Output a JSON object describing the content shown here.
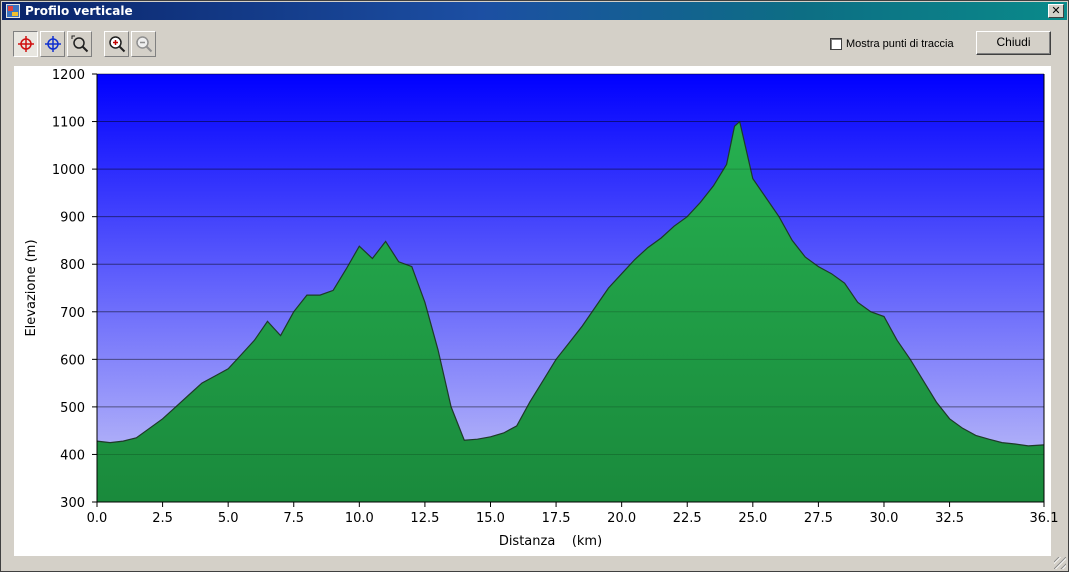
{
  "window": {
    "title": "Profilo verticale",
    "close_glyph": "✕"
  },
  "toolbar": {
    "buttons": [
      {
        "name": "crosshair-red-icon",
        "pressed": true
      },
      {
        "name": "crosshair-blue-icon",
        "pressed": false
      },
      {
        "name": "zoom-area-icon",
        "pressed": false
      },
      {
        "name": "zoom-in-icon",
        "pressed": false
      },
      {
        "name": "zoom-out-icon",
        "pressed": false,
        "disabled": true
      }
    ],
    "show_track_points_label": "Mostra punti di traccia",
    "show_track_points_checked": false,
    "close_label": "Chiudi"
  },
  "colors": {
    "sky_top": "#0000ff",
    "sky_bottom": "#c8c8f8",
    "terrain_top": "#26b050",
    "terrain_bottom": "#1a8a3c",
    "profile_line": "#1e3a28"
  },
  "chart_data": {
    "type": "area",
    "xlabel": "Distanza    (km)",
    "ylabel": "Elevazione (m)",
    "xlim": [
      0.0,
      36.1
    ],
    "ylim": [
      300,
      1200
    ],
    "xticks": [
      "0.0",
      "2.5",
      "5.0",
      "7.5",
      "10.0",
      "12.5",
      "15.0",
      "17.5",
      "20.0",
      "22.5",
      "25.0",
      "27.5",
      "30.0",
      "32.5",
      "36.1"
    ],
    "xtick_values": [
      0,
      2.5,
      5,
      7.5,
      10,
      12.5,
      15,
      17.5,
      20,
      22.5,
      25,
      27.5,
      30,
      32.5,
      36.1
    ],
    "yticks": [
      300,
      400,
      500,
      600,
      700,
      800,
      900,
      1000,
      1100,
      1200
    ],
    "grid": true,
    "series": [
      {
        "x": [
          0,
          0.5,
          1.0,
          1.5,
          2.0,
          2.5,
          3.0,
          3.5,
          4.0,
          4.5,
          5.0,
          5.5,
          6.0,
          6.5,
          7.0,
          7.5,
          8.0,
          8.5,
          9.0,
          9.5,
          10.0,
          10.5,
          11.0,
          11.5,
          12.0,
          12.5,
          13.0,
          13.5,
          14.0,
          14.5,
          15.0,
          15.5,
          16.0,
          16.5,
          17.0,
          17.5,
          18.0,
          18.5,
          19.0,
          19.5,
          20.0,
          20.5,
          21.0,
          21.5,
          22.0,
          22.5,
          23.0,
          23.5,
          24.0,
          24.3,
          24.5,
          25.0,
          25.5,
          26.0,
          26.5,
          27.0,
          27.5,
          28.0,
          28.5,
          29.0,
          29.5,
          30.0,
          30.5,
          31.0,
          31.5,
          32.0,
          32.5,
          33.0,
          33.5,
          34.0,
          34.5,
          35.0,
          35.5,
          36.1
        ],
        "y": [
          428,
          425,
          428,
          435,
          455,
          475,
          500,
          525,
          550,
          565,
          580,
          610,
          640,
          680,
          650,
          700,
          735,
          735,
          745,
          790,
          838,
          812,
          848,
          805,
          795,
          720,
          620,
          500,
          430,
          432,
          437,
          445,
          460,
          510,
          555,
          600,
          635,
          670,
          710,
          750,
          780,
          810,
          835,
          855,
          880,
          900,
          930,
          965,
          1010,
          1090,
          1100,
          980,
          940,
          900,
          850,
          815,
          795,
          780,
          760,
          720,
          700,
          690,
          640,
          600,
          555,
          510,
          475,
          455,
          440,
          432,
          425,
          422,
          418,
          420
        ]
      }
    ]
  }
}
